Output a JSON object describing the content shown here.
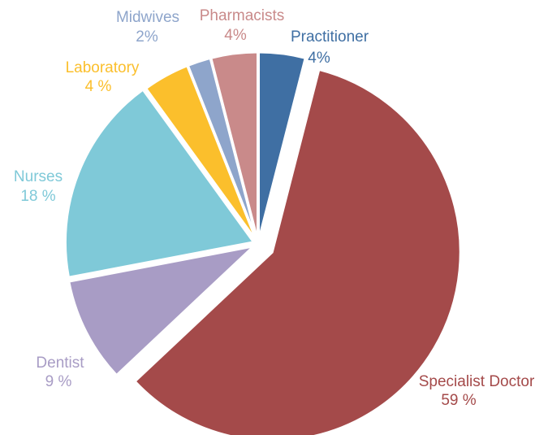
{
  "chart_data": {
    "type": "pie",
    "categories": [
      "Practitioner",
      "Specialist Doctor",
      "Dentist",
      "Nurses",
      "Laboratory",
      "Midwives",
      "Pharmacists"
    ],
    "values": [
      4,
      59,
      9,
      18,
      4,
      2,
      4
    ],
    "value_labels": [
      "4%",
      "59 %",
      "9 %",
      "18 %",
      "4 %",
      "2%",
      "4%"
    ],
    "colors": [
      "#3f6fa3",
      "#a44a4a",
      "#a89cc5",
      "#7fc9d8",
      "#fbbf2c",
      "#8ea5cb",
      "#c98a8a"
    ]
  }
}
